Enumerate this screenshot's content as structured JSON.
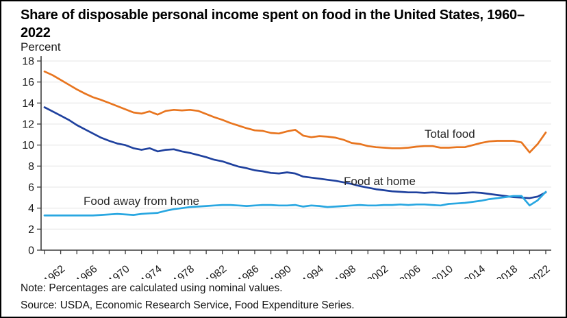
{
  "title": "Share of disposable personal income spent on food in the United States, 1960–2022",
  "y_axis_unit": "Percent",
  "note": "Note: Percentages are calculated using nominal values.",
  "source": "Source: USDA, Economic Research Service, Food Expenditure Series.",
  "colors": {
    "total_food": "#E8751F",
    "food_at_home": "#1F419E",
    "food_away_from_home": "#29A7E1",
    "grid": "#EBEBEB",
    "axis": "#3C3C3C",
    "tick_label": "#1A1A1A",
    "series_label": "#262626"
  },
  "chart_data": {
    "type": "line",
    "title": "Share of disposable personal income spent on food in the United States, 1960–2022",
    "xlabel": "",
    "ylabel": "Percent",
    "ylim": [
      0,
      18
    ],
    "grid": true,
    "legend_position": "inline-labels",
    "y_ticks": [
      0,
      2,
      4,
      6,
      8,
      10,
      12,
      14,
      16,
      18
    ],
    "x_tick_labels": [
      "1962",
      "1966",
      "1970",
      "1974",
      "1978",
      "1982",
      "1986",
      "1990",
      "1994",
      "1998",
      "2002",
      "2006",
      "2010",
      "2014",
      "2018",
      "2022"
    ],
    "x_minor_tick_step_years": 2,
    "x": [
      1960,
      1961,
      1962,
      1963,
      1964,
      1965,
      1966,
      1967,
      1968,
      1969,
      1970,
      1971,
      1972,
      1973,
      1974,
      1975,
      1976,
      1977,
      1978,
      1979,
      1980,
      1981,
      1982,
      1983,
      1984,
      1985,
      1986,
      1987,
      1988,
      1989,
      1990,
      1991,
      1992,
      1993,
      1994,
      1995,
      1996,
      1997,
      1998,
      1999,
      2000,
      2001,
      2002,
      2003,
      2004,
      2005,
      2006,
      2007,
      2008,
      2009,
      2010,
      2011,
      2012,
      2013,
      2014,
      2015,
      2016,
      2017,
      2018,
      2019,
      2020,
      2021,
      2022
    ],
    "series": [
      {
        "name": "Total food",
        "color": "#E8751F",
        "values": [
          17.0,
          16.65,
          16.2,
          15.75,
          15.3,
          14.9,
          14.55,
          14.3,
          14.0,
          13.7,
          13.4,
          13.1,
          13.0,
          13.2,
          12.9,
          13.25,
          13.35,
          13.3,
          13.35,
          13.25,
          12.95,
          12.65,
          12.4,
          12.1,
          11.85,
          11.6,
          11.4,
          11.35,
          11.15,
          11.1,
          11.3,
          11.45,
          10.9,
          10.75,
          10.85,
          10.8,
          10.7,
          10.5,
          10.2,
          10.1,
          9.9,
          9.8,
          9.75,
          9.7,
          9.7,
          9.75,
          9.85,
          9.9,
          9.9,
          9.75,
          9.75,
          9.8,
          9.8,
          10.0,
          10.2,
          10.35,
          10.4,
          10.4,
          10.4,
          10.25,
          9.3,
          10.1,
          11.2
        ]
      },
      {
        "name": "Food at home",
        "color": "#1F419E",
        "values": [
          13.6,
          13.2,
          12.8,
          12.4,
          11.9,
          11.5,
          11.1,
          10.7,
          10.4,
          10.15,
          10.0,
          9.7,
          9.55,
          9.7,
          9.4,
          9.55,
          9.6,
          9.4,
          9.25,
          9.05,
          8.85,
          8.6,
          8.45,
          8.2,
          7.95,
          7.8,
          7.6,
          7.5,
          7.35,
          7.3,
          7.4,
          7.3,
          7.0,
          6.9,
          6.8,
          6.7,
          6.6,
          6.45,
          6.3,
          6.1,
          5.95,
          5.8,
          5.7,
          5.6,
          5.55,
          5.5,
          5.5,
          5.45,
          5.5,
          5.45,
          5.4,
          5.4,
          5.45,
          5.5,
          5.45,
          5.35,
          5.25,
          5.15,
          5.05,
          5.0,
          4.95,
          5.1,
          5.5
        ]
      },
      {
        "name": "Food away from home",
        "color": "#29A7E1",
        "values": [
          3.3,
          3.3,
          3.3,
          3.3,
          3.3,
          3.3,
          3.3,
          3.35,
          3.4,
          3.45,
          3.4,
          3.35,
          3.45,
          3.5,
          3.55,
          3.75,
          3.9,
          4.0,
          4.1,
          4.15,
          4.2,
          4.25,
          4.3,
          4.3,
          4.25,
          4.2,
          4.25,
          4.3,
          4.3,
          4.25,
          4.25,
          4.3,
          4.15,
          4.25,
          4.2,
          4.1,
          4.15,
          4.2,
          4.25,
          4.3,
          4.25,
          4.25,
          4.3,
          4.3,
          4.35,
          4.3,
          4.35,
          4.35,
          4.3,
          4.25,
          4.4,
          4.45,
          4.5,
          4.6,
          4.7,
          4.85,
          4.95,
          5.05,
          5.15,
          5.15,
          4.25,
          4.75,
          5.55
        ]
      }
    ]
  }
}
